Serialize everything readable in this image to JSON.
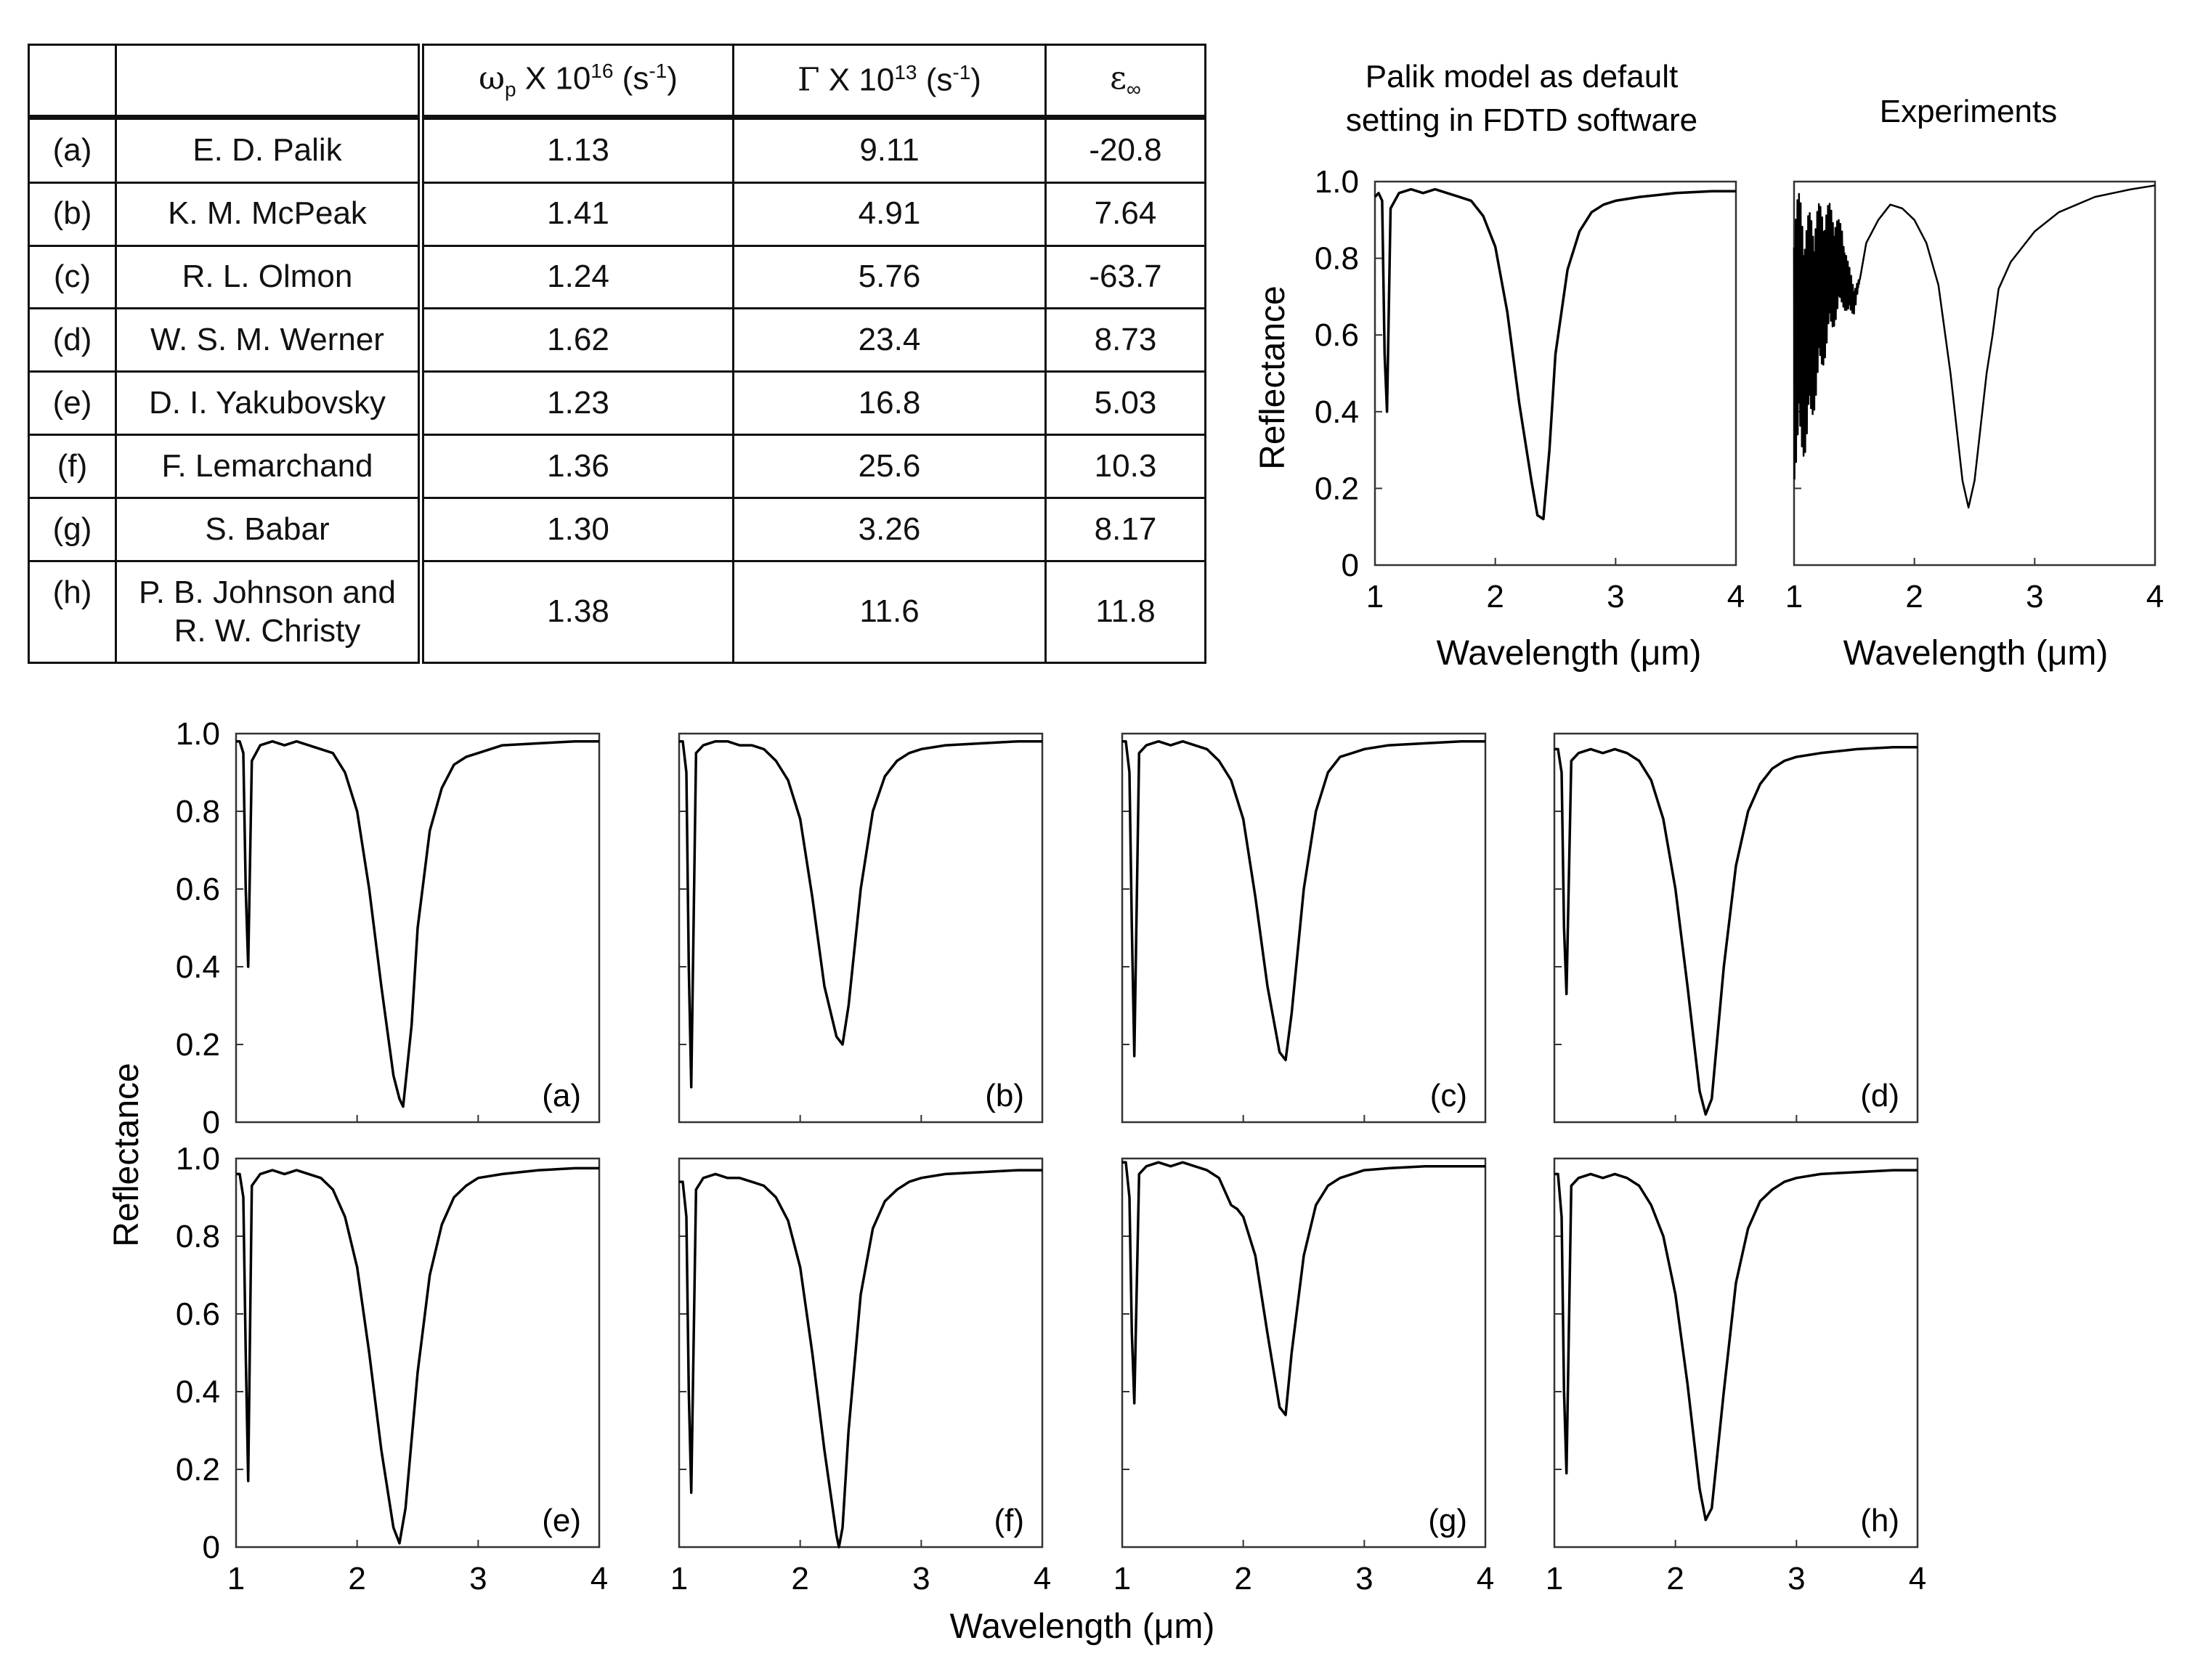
{
  "table": {
    "headers": [
      {
        "sym": "ω",
        "sub": "p",
        "main": " X 10",
        "sup": "16",
        "unit_open": " (s",
        "unit_sup": "-1",
        "unit_close": ")"
      },
      {
        "sym": "Γ",
        "sub": "",
        "main": " X 10",
        "sup": "13",
        "unit_open": " (s",
        "unit_sup": "-1",
        "unit_close": ")"
      },
      {
        "sym": "ε",
        "sub": "∞"
      }
    ],
    "rows": [
      {
        "label": "(a)",
        "name": "E. D. Palik",
        "wp": "1.13",
        "gamma": "9.11",
        "eps": "-20.8"
      },
      {
        "label": "(b)",
        "name": "K. M. McPeak",
        "wp": "1.41",
        "gamma": "4.91",
        "eps": "7.64"
      },
      {
        "label": "(c)",
        "name": "R. L. Olmon",
        "wp": "1.24",
        "gamma": "5.76",
        "eps": "-63.7"
      },
      {
        "label": "(d)",
        "name": "W. S. M. Werner",
        "wp": "1.62",
        "gamma": "23.4",
        "eps": "8.73"
      },
      {
        "label": "(e)",
        "name": "D. I. Yakubovsky",
        "wp": "1.23",
        "gamma": "16.8",
        "eps": "5.03"
      },
      {
        "label": "(f)",
        "name": "F. Lemarchand",
        "wp": "1.36",
        "gamma": "25.6",
        "eps": "10.3"
      },
      {
        "label": "(g)",
        "name": "S. Babar",
        "wp": "1.30",
        "gamma": "3.26",
        "eps": "8.17"
      },
      {
        "label": "(h)",
        "name_line1": "P. B. Johnson and",
        "name_line2": "R. W. Christy",
        "wp": "1.38",
        "gamma": "11.6",
        "eps": "11.8"
      }
    ]
  },
  "chart_data": [
    {
      "id": "palik-default",
      "type": "line",
      "title_line1": "Palik model as default",
      "title_line2": "setting in FDTD software",
      "xlabel": "Wavelength (μm)",
      "ylabel": "Reflectance",
      "xlim": [
        1,
        4
      ],
      "ylim": [
        0,
        1.0
      ],
      "xticks": [
        "1",
        "2",
        "3",
        "4"
      ],
      "yticks": [
        "0",
        "0.2",
        "0.4",
        "0.6",
        "0.8",
        "1.0"
      ],
      "series": [
        {
          "name": "Palik",
          "x": [
            1.0,
            1.03,
            1.06,
            1.08,
            1.1,
            1.13,
            1.2,
            1.3,
            1.4,
            1.5,
            1.6,
            1.7,
            1.8,
            1.9,
            2.0,
            2.1,
            2.2,
            2.3,
            2.35,
            2.4,
            2.45,
            2.5,
            2.6,
            2.7,
            2.8,
            2.9,
            3.0,
            3.2,
            3.5,
            3.8,
            4.0
          ],
          "y": [
            0.96,
            0.97,
            0.95,
            0.55,
            0.4,
            0.93,
            0.97,
            0.98,
            0.97,
            0.98,
            0.97,
            0.96,
            0.95,
            0.91,
            0.83,
            0.66,
            0.42,
            0.22,
            0.13,
            0.12,
            0.3,
            0.55,
            0.77,
            0.87,
            0.92,
            0.94,
            0.95,
            0.96,
            0.97,
            0.975,
            0.975
          ]
        }
      ]
    },
    {
      "id": "experiments",
      "type": "line",
      "title_line1": "Experiments",
      "xlabel": "Wavelength (μm)",
      "xlim": [
        1,
        4
      ],
      "ylim": [
        0,
        1.0
      ],
      "xticks": [
        "1",
        "2",
        "3",
        "4"
      ],
      "series": [
        {
          "name": "Experiment",
          "noisy_until": 1.55,
          "x": [
            1.0,
            1.05,
            1.1,
            1.15,
            1.2,
            1.3,
            1.4,
            1.45,
            1.5,
            1.55,
            1.6,
            1.7,
            1.8,
            1.9,
            2.0,
            2.1,
            2.2,
            2.3,
            2.4,
            2.45,
            2.5,
            2.6,
            2.65,
            2.7,
            2.8,
            3.0,
            3.2,
            3.5,
            3.8,
            4.0
          ],
          "y": [
            0.6,
            0.62,
            0.6,
            0.65,
            0.7,
            0.77,
            0.78,
            0.72,
            0.69,
            0.75,
            0.84,
            0.9,
            0.94,
            0.93,
            0.9,
            0.84,
            0.73,
            0.5,
            0.22,
            0.15,
            0.22,
            0.5,
            0.6,
            0.72,
            0.79,
            0.87,
            0.92,
            0.96,
            0.98,
            0.99
          ]
        }
      ]
    },
    {
      "id": "panel-a",
      "type": "line",
      "panel_label": "(a)",
      "xlim": [
        1,
        4
      ],
      "ylim": [
        0,
        1.0
      ],
      "series": [
        {
          "x": [
            1.0,
            1.03,
            1.06,
            1.08,
            1.1,
            1.13,
            1.2,
            1.3,
            1.4,
            1.5,
            1.6,
            1.7,
            1.8,
            1.9,
            2.0,
            2.1,
            2.2,
            2.3,
            2.35,
            2.38,
            2.45,
            2.5,
            2.6,
            2.7,
            2.8,
            2.9,
            3.0,
            3.2,
            3.5,
            3.8,
            4.0
          ],
          "y": [
            0.98,
            0.98,
            0.95,
            0.6,
            0.4,
            0.93,
            0.97,
            0.98,
            0.97,
            0.98,
            0.97,
            0.96,
            0.95,
            0.9,
            0.8,
            0.6,
            0.35,
            0.12,
            0.06,
            0.04,
            0.25,
            0.5,
            0.75,
            0.86,
            0.92,
            0.94,
            0.95,
            0.97,
            0.975,
            0.98,
            0.98
          ]
        }
      ]
    },
    {
      "id": "panel-b",
      "type": "line",
      "panel_label": "(b)",
      "xlim": [
        1,
        4
      ],
      "ylim": [
        0,
        1.0
      ],
      "series": [
        {
          "x": [
            1.0,
            1.03,
            1.06,
            1.08,
            1.1,
            1.14,
            1.2,
            1.3,
            1.4,
            1.5,
            1.6,
            1.7,
            1.8,
            1.9,
            2.0,
            2.1,
            2.2,
            2.3,
            2.35,
            2.4,
            2.5,
            2.6,
            2.7,
            2.8,
            2.9,
            3.0,
            3.2,
            3.5,
            3.8,
            4.0
          ],
          "y": [
            0.98,
            0.98,
            0.9,
            0.4,
            0.09,
            0.95,
            0.97,
            0.98,
            0.98,
            0.97,
            0.97,
            0.96,
            0.93,
            0.88,
            0.78,
            0.58,
            0.35,
            0.22,
            0.2,
            0.3,
            0.6,
            0.8,
            0.89,
            0.93,
            0.95,
            0.96,
            0.97,
            0.975,
            0.98,
            0.98
          ]
        }
      ]
    },
    {
      "id": "panel-c",
      "type": "line",
      "panel_label": "(c)",
      "xlim": [
        1,
        4
      ],
      "ylim": [
        0,
        1.0
      ],
      "series": [
        {
          "x": [
            1.0,
            1.03,
            1.06,
            1.08,
            1.1,
            1.14,
            1.2,
            1.3,
            1.4,
            1.5,
            1.6,
            1.7,
            1.8,
            1.9,
            2.0,
            2.1,
            2.2,
            2.3,
            2.35,
            2.4,
            2.5,
            2.6,
            2.7,
            2.8,
            2.9,
            3.0,
            3.2,
            3.5,
            3.8,
            4.0
          ],
          "y": [
            0.98,
            0.98,
            0.9,
            0.5,
            0.17,
            0.95,
            0.97,
            0.98,
            0.97,
            0.98,
            0.97,
            0.96,
            0.93,
            0.88,
            0.78,
            0.58,
            0.35,
            0.18,
            0.16,
            0.28,
            0.6,
            0.8,
            0.9,
            0.94,
            0.95,
            0.96,
            0.97,
            0.975,
            0.98,
            0.98
          ]
        }
      ]
    },
    {
      "id": "panel-d",
      "type": "line",
      "panel_label": "(d)",
      "xlim": [
        1,
        4
      ],
      "ylim": [
        0,
        1.0
      ],
      "series": [
        {
          "x": [
            1.0,
            1.03,
            1.06,
            1.08,
            1.1,
            1.14,
            1.2,
            1.3,
            1.4,
            1.5,
            1.6,
            1.7,
            1.8,
            1.9,
            2.0,
            2.1,
            2.2,
            2.25,
            2.3,
            2.4,
            2.5,
            2.6,
            2.7,
            2.8,
            2.9,
            3.0,
            3.2,
            3.5,
            3.8,
            4.0
          ],
          "y": [
            0.96,
            0.96,
            0.9,
            0.5,
            0.33,
            0.93,
            0.95,
            0.96,
            0.95,
            0.96,
            0.95,
            0.93,
            0.88,
            0.78,
            0.6,
            0.35,
            0.08,
            0.02,
            0.06,
            0.4,
            0.66,
            0.8,
            0.87,
            0.91,
            0.93,
            0.94,
            0.95,
            0.96,
            0.965,
            0.965
          ]
        }
      ]
    },
    {
      "id": "panel-e",
      "type": "line",
      "panel_label": "(e)",
      "xlim": [
        1,
        4
      ],
      "ylim": [
        0,
        1.0
      ],
      "series": [
        {
          "x": [
            1.0,
            1.03,
            1.06,
            1.08,
            1.1,
            1.13,
            1.2,
            1.3,
            1.4,
            1.5,
            1.6,
            1.7,
            1.8,
            1.9,
            2.0,
            2.1,
            2.2,
            2.3,
            2.35,
            2.4,
            2.5,
            2.6,
            2.7,
            2.8,
            2.9,
            3.0,
            3.2,
            3.5,
            3.8,
            4.0
          ],
          "y": [
            0.96,
            0.96,
            0.9,
            0.5,
            0.17,
            0.93,
            0.96,
            0.97,
            0.96,
            0.97,
            0.96,
            0.95,
            0.92,
            0.85,
            0.72,
            0.5,
            0.25,
            0.05,
            0.01,
            0.1,
            0.45,
            0.7,
            0.83,
            0.9,
            0.93,
            0.95,
            0.96,
            0.97,
            0.975,
            0.975
          ]
        }
      ]
    },
    {
      "id": "panel-f",
      "type": "line",
      "panel_label": "(f)",
      "xlim": [
        1,
        4
      ],
      "ylim": [
        0,
        1.0
      ],
      "series": [
        {
          "x": [
            1.0,
            1.03,
            1.06,
            1.08,
            1.1,
            1.14,
            1.2,
            1.3,
            1.4,
            1.5,
            1.6,
            1.7,
            1.8,
            1.9,
            2.0,
            2.1,
            2.2,
            2.3,
            2.32,
            2.35,
            2.4,
            2.5,
            2.6,
            2.7,
            2.8,
            2.9,
            3.0,
            3.2,
            3.5,
            3.8,
            4.0
          ],
          "y": [
            0.94,
            0.94,
            0.85,
            0.4,
            0.14,
            0.92,
            0.95,
            0.96,
            0.95,
            0.95,
            0.94,
            0.93,
            0.9,
            0.84,
            0.72,
            0.5,
            0.25,
            0.03,
            0.0,
            0.05,
            0.3,
            0.65,
            0.82,
            0.89,
            0.92,
            0.94,
            0.95,
            0.96,
            0.965,
            0.97,
            0.97
          ]
        }
      ]
    },
    {
      "id": "panel-g",
      "type": "line",
      "panel_label": "(g)",
      "xlim": [
        1,
        4
      ],
      "ylim": [
        0,
        1.0
      ],
      "series": [
        {
          "x": [
            1.0,
            1.03,
            1.06,
            1.08,
            1.1,
            1.14,
            1.2,
            1.3,
            1.4,
            1.5,
            1.6,
            1.7,
            1.8,
            1.9,
            1.95,
            2.0,
            2.1,
            2.2,
            2.3,
            2.35,
            2.4,
            2.5,
            2.6,
            2.7,
            2.8,
            2.9,
            3.0,
            3.2,
            3.5,
            3.8,
            4.0
          ],
          "y": [
            0.99,
            0.99,
            0.9,
            0.55,
            0.37,
            0.96,
            0.98,
            0.99,
            0.98,
            0.99,
            0.98,
            0.97,
            0.95,
            0.88,
            0.87,
            0.85,
            0.75,
            0.55,
            0.36,
            0.34,
            0.5,
            0.75,
            0.88,
            0.93,
            0.95,
            0.96,
            0.97,
            0.975,
            0.98,
            0.98,
            0.98
          ]
        }
      ]
    },
    {
      "id": "panel-h",
      "type": "line",
      "panel_label": "(h)",
      "xlim": [
        1,
        4
      ],
      "ylim": [
        0,
        1.0
      ],
      "series": [
        {
          "x": [
            1.0,
            1.03,
            1.06,
            1.08,
            1.1,
            1.14,
            1.2,
            1.3,
            1.4,
            1.5,
            1.6,
            1.7,
            1.8,
            1.9,
            2.0,
            2.1,
            2.2,
            2.25,
            2.3,
            2.4,
            2.5,
            2.6,
            2.7,
            2.8,
            2.9,
            3.0,
            3.2,
            3.5,
            3.8,
            4.0
          ],
          "y": [
            0.96,
            0.96,
            0.85,
            0.4,
            0.19,
            0.93,
            0.95,
            0.96,
            0.95,
            0.96,
            0.95,
            0.93,
            0.88,
            0.8,
            0.65,
            0.42,
            0.15,
            0.07,
            0.1,
            0.4,
            0.68,
            0.82,
            0.89,
            0.92,
            0.94,
            0.95,
            0.96,
            0.965,
            0.97,
            0.97
          ]
        }
      ]
    }
  ],
  "grid_panels": {
    "ylabel": "Reflectance",
    "xlabel": "Wavelength (μm)",
    "xticks": [
      "1",
      "2",
      "3",
      "4"
    ],
    "yticks": [
      "0",
      "0.2",
      "0.4",
      "0.6",
      "0.8",
      "1.0"
    ]
  },
  "colors": {
    "line": "#000000",
    "axis": "#333333",
    "text": "#111111"
  }
}
